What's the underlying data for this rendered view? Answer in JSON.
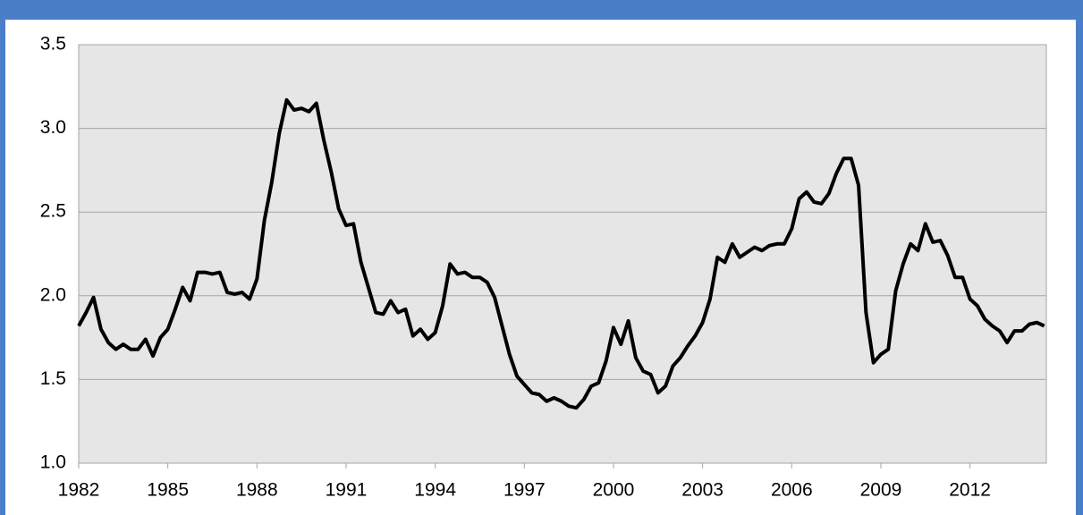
{
  "chart_data": {
    "type": "line",
    "x": [
      1982,
      1982.25,
      1982.5,
      1982.75,
      1983,
      1983.25,
      1983.5,
      1983.75,
      1984,
      1984.25,
      1984.5,
      1984.75,
      1985,
      1985.25,
      1985.5,
      1985.75,
      1986,
      1986.25,
      1986.5,
      1986.75,
      1987,
      1987.25,
      1987.5,
      1987.75,
      1988,
      1988.25,
      1988.5,
      1988.75,
      1989,
      1989.25,
      1989.5,
      1989.75,
      1990,
      1990.25,
      1990.5,
      1990.75,
      1991,
      1991.25,
      1991.5,
      1991.75,
      1992,
      1992.25,
      1992.5,
      1992.75,
      1993,
      1993.25,
      1993.5,
      1993.75,
      1994,
      1994.25,
      1994.5,
      1994.75,
      1995,
      1995.25,
      1995.5,
      1995.75,
      1996,
      1996.25,
      1996.5,
      1996.75,
      1997,
      1997.25,
      1997.5,
      1997.75,
      1998,
      1998.25,
      1998.5,
      1998.75,
      1999,
      1999.25,
      1999.5,
      1999.75,
      2000,
      2000.25,
      2000.5,
      2000.75,
      2001,
      2001.25,
      2001.5,
      2001.75,
      2002,
      2002.25,
      2002.5,
      2002.75,
      2003,
      2003.25,
      2003.5,
      2003.75,
      2004,
      2004.25,
      2004.5,
      2004.75,
      2005,
      2005.25,
      2005.5,
      2005.75,
      2006,
      2006.25,
      2006.5,
      2006.75,
      2007,
      2007.25,
      2007.5,
      2007.75,
      2008,
      2008.25,
      2008.5,
      2008.75,
      2009,
      2009.25,
      2009.5,
      2009.75,
      2010,
      2010.25,
      2010.5,
      2010.75,
      2011,
      2011.25,
      2011.5,
      2011.75,
      2012,
      2012.25,
      2012.5,
      2012.75,
      2013,
      2013.25,
      2013.5,
      2013.75,
      2014,
      2014.25,
      2014.5
    ],
    "values": [
      1.82,
      1.9,
      1.99,
      1.8,
      1.72,
      1.68,
      1.71,
      1.68,
      1.68,
      1.74,
      1.64,
      1.75,
      1.8,
      1.92,
      2.05,
      1.97,
      2.14,
      2.14,
      2.13,
      2.14,
      2.02,
      2.01,
      2.02,
      1.98,
      2.1,
      2.45,
      2.68,
      2.97,
      3.17,
      3.11,
      3.12,
      3.1,
      3.15,
      2.93,
      2.74,
      2.52,
      2.42,
      2.43,
      2.2,
      2.05,
      1.9,
      1.89,
      1.97,
      1.9,
      1.92,
      1.76,
      1.8,
      1.74,
      1.78,
      1.94,
      2.19,
      2.13,
      2.14,
      2.11,
      2.11,
      2.08,
      1.99,
      1.82,
      1.65,
      1.52,
      1.47,
      1.42,
      1.41,
      1.37,
      1.39,
      1.37,
      1.34,
      1.33,
      1.38,
      1.46,
      1.48,
      1.61,
      1.81,
      1.71,
      1.85,
      1.63,
      1.55,
      1.53,
      1.42,
      1.46,
      1.58,
      1.63,
      1.7,
      1.76,
      1.84,
      1.98,
      2.23,
      2.2,
      2.31,
      2.23,
      2.26,
      2.29,
      2.27,
      2.3,
      2.31,
      2.31,
      2.4,
      2.58,
      2.62,
      2.56,
      2.55,
      2.61,
      2.73,
      2.82,
      2.82,
      2.66,
      1.9,
      1.6,
      1.65,
      1.68,
      2.03,
      2.19,
      2.31,
      2.27,
      2.43,
      2.32,
      2.33,
      2.24,
      2.11,
      2.11,
      1.98,
      1.94,
      1.86,
      1.82,
      1.79,
      1.72,
      1.79,
      1.79,
      1.83,
      1.84,
      1.82
    ],
    "color": "#000000",
    "xlim": [
      1982,
      2014.57
    ],
    "xticks": [
      1982,
      1985,
      1988,
      1991,
      1994,
      1997,
      2000,
      2003,
      2006,
      2009,
      2012
    ],
    "ylim": [
      1.0,
      3.5
    ],
    "yticks": [
      {
        "value": 1.0,
        "label": "1.0"
      },
      1.5,
      {
        "value": 2.0,
        "label": "2.0"
      },
      2.5,
      {
        "value": 3.0,
        "label": "3.0"
      },
      3.5
    ],
    "grid": true
  }
}
